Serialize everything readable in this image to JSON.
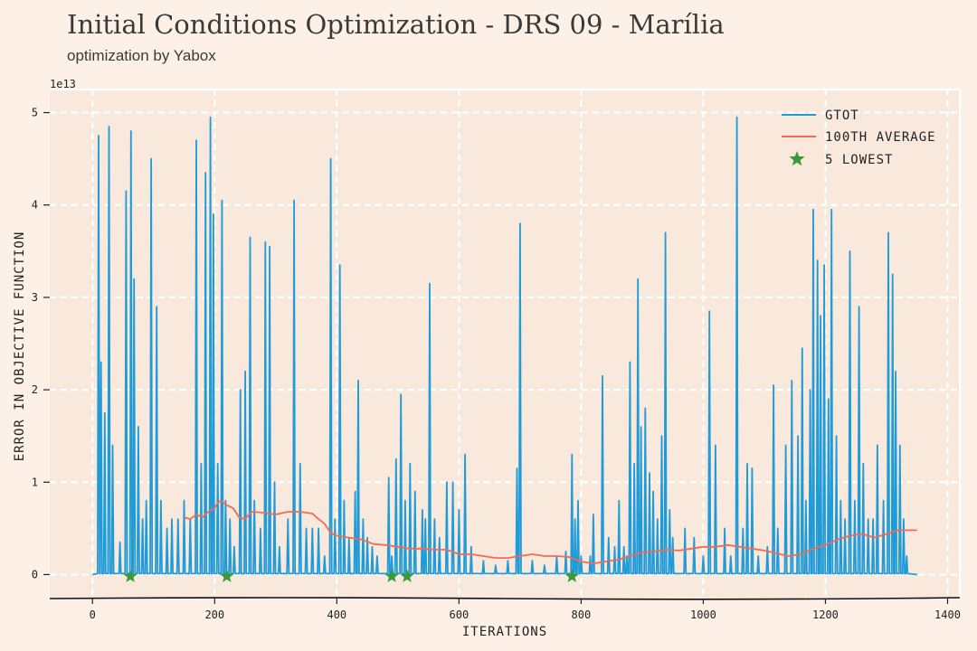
{
  "chart_data": {
    "type": "line",
    "title": "Initial Conditions Optimization - DRS 09 - Marília",
    "subtitle": "optimization by Yabox",
    "xlabel": "ITERATIONS",
    "ylabel": "ERROR IN OBJECTIVE FUNCTION",
    "y_multiplier": "1e13",
    "xlim": [
      -70,
      1420
    ],
    "ylim": [
      -0.25,
      5.25
    ],
    "x_ticks": [
      0,
      200,
      400,
      600,
      800,
      1000,
      1200,
      1400
    ],
    "y_ticks": [
      0,
      1,
      2,
      3,
      4,
      5
    ],
    "grid": true,
    "legend_position": "top-right",
    "colors": {
      "gtot": "#1f9bd8",
      "average": "#f26b54",
      "lowest": "#3a9a3a",
      "grid": "#ffffff",
      "plot_bg": "#f9e8dc"
    },
    "series": [
      {
        "name": "GTOT",
        "style": "line",
        "spikes": [
          [
            10,
            4.75
          ],
          [
            14,
            2.3
          ],
          [
            20,
            1.75
          ],
          [
            27,
            4.85
          ],
          [
            33,
            1.4
          ],
          [
            45,
            0.35
          ],
          [
            55,
            4.15
          ],
          [
            63,
            4.8
          ],
          [
            68,
            3.2
          ],
          [
            75,
            1.6
          ],
          [
            82,
            0.6
          ],
          [
            88,
            0.8
          ],
          [
            96,
            4.5
          ],
          [
            105,
            2.9
          ],
          [
            112,
            0.8
          ],
          [
            122,
            0.5
          ],
          [
            130,
            0.6
          ],
          [
            140,
            0.6
          ],
          [
            150,
            0.8
          ],
          [
            160,
            0.6
          ],
          [
            170,
            4.7
          ],
          [
            178,
            1.2
          ],
          [
            185,
            4.35
          ],
          [
            193,
            4.95
          ],
          [
            198,
            3.9
          ],
          [
            205,
            1.2
          ],
          [
            212,
            4.05
          ],
          [
            218,
            0.8
          ],
          [
            225,
            0.6
          ],
          [
            232,
            0.3
          ],
          [
            242,
            2.0
          ],
          [
            250,
            2.2
          ],
          [
            258,
            3.65
          ],
          [
            265,
            0.8
          ],
          [
            275,
            0.5
          ],
          [
            283,
            3.6
          ],
          [
            290,
            3.55
          ],
          [
            298,
            1.0
          ],
          [
            306,
            0.3
          ],
          [
            320,
            0.6
          ],
          [
            330,
            4.05
          ],
          [
            340,
            1.2
          ],
          [
            350,
            0.5
          ],
          [
            360,
            0.5
          ],
          [
            370,
            0.5
          ],
          [
            380,
            0.2
          ],
          [
            390,
            4.5
          ],
          [
            397,
            0.6
          ],
          [
            405,
            3.35
          ],
          [
            412,
            0.8
          ],
          [
            420,
            0.4
          ],
          [
            430,
            0.9
          ],
          [
            435,
            2.1
          ],
          [
            443,
            0.6
          ],
          [
            450,
            0.4
          ],
          [
            458,
            0.3
          ],
          [
            466,
            0.2
          ],
          [
            485,
            1.05
          ],
          [
            490,
            0.2
          ],
          [
            497,
            1.25
          ],
          [
            505,
            1.95
          ],
          [
            512,
            0.8
          ],
          [
            520,
            1.2
          ],
          [
            528,
            0.9
          ],
          [
            540,
            0.7
          ],
          [
            545,
            0.6
          ],
          [
            552,
            3.15
          ],
          [
            560,
            0.6
          ],
          [
            568,
            0.4
          ],
          [
            580,
            1.0
          ],
          [
            590,
            1.0
          ],
          [
            600,
            0.7
          ],
          [
            610,
            1.3
          ],
          [
            620,
            0.3
          ],
          [
            640,
            0.15
          ],
          [
            660,
            0.1
          ],
          [
            680,
            0.15
          ],
          [
            695,
            1.15
          ],
          [
            700,
            3.8
          ],
          [
            720,
            0.15
          ],
          [
            740,
            0.1
          ],
          [
            760,
            0.2
          ],
          [
            775,
            0.25
          ],
          [
            785,
            1.3
          ],
          [
            790,
            0.6
          ],
          [
            795,
            0.8
          ],
          [
            800,
            0.2
          ],
          [
            815,
            0.2
          ],
          [
            820,
            0.65
          ],
          [
            835,
            2.15
          ],
          [
            845,
            0.4
          ],
          [
            855,
            0.3
          ],
          [
            862,
            0.8
          ],
          [
            870,
            0.3
          ],
          [
            875,
            0.2
          ],
          [
            880,
            2.3
          ],
          [
            887,
            1.2
          ],
          [
            893,
            3.2
          ],
          [
            898,
            1.6
          ],
          [
            905,
            1.8
          ],
          [
            912,
            1.1
          ],
          [
            918,
            0.9
          ],
          [
            925,
            0.6
          ],
          [
            932,
            1.5
          ],
          [
            938,
            3.7
          ],
          [
            945,
            0.7
          ],
          [
            950,
            0.4
          ],
          [
            970,
            0.5
          ],
          [
            985,
            0.4
          ],
          [
            1000,
            0.2
          ],
          [
            1010,
            2.85
          ],
          [
            1020,
            1.4
          ],
          [
            1035,
            0.5
          ],
          [
            1045,
            0.2
          ],
          [
            1055,
            4.95
          ],
          [
            1065,
            0.5
          ],
          [
            1072,
            1.2
          ],
          [
            1080,
            1.15
          ],
          [
            1090,
            0.2
          ],
          [
            1105,
            0.3
          ],
          [
            1115,
            2.05
          ],
          [
            1122,
            0.5
          ],
          [
            1135,
            1.4
          ],
          [
            1145,
            2.1
          ],
          [
            1155,
            1.5
          ],
          [
            1162,
            2.45
          ],
          [
            1168,
            0.8
          ],
          [
            1175,
            2.0
          ],
          [
            1180,
            3.95
          ],
          [
            1187,
            3.4
          ],
          [
            1192,
            2.8
          ],
          [
            1198,
            3.35
          ],
          [
            1205,
            1.9
          ],
          [
            1210,
            3.95
          ],
          [
            1218,
            1.5
          ],
          [
            1225,
            0.8
          ],
          [
            1232,
            0.6
          ],
          [
            1240,
            3.5
          ],
          [
            1248,
            0.8
          ],
          [
            1255,
            2.9
          ],
          [
            1262,
            1.2
          ],
          [
            1270,
            0.6
          ],
          [
            1278,
            0.6
          ],
          [
            1285,
            1.4
          ],
          [
            1295,
            0.8
          ],
          [
            1303,
            3.7
          ],
          [
            1310,
            3.25
          ],
          [
            1315,
            2.2
          ],
          [
            1322,
            1.4
          ],
          [
            1328,
            0.6
          ],
          [
            1333,
            0.2
          ]
        ],
        "x_range": [
          0,
          1350
        ]
      },
      {
        "name": "100TH AVERAGE",
        "style": "line",
        "x": [
          150,
          160,
          170,
          180,
          190,
          200,
          205,
          210,
          220,
          230,
          240,
          250,
          260,
          280,
          300,
          320,
          340,
          360,
          370,
          380,
          390,
          400,
          420,
          440,
          460,
          480,
          500,
          520,
          540,
          560,
          580,
          600,
          620,
          640,
          660,
          680,
          700,
          720,
          740,
          760,
          780,
          800,
          820,
          840,
          860,
          880,
          900,
          920,
          940,
          960,
          980,
          1000,
          1020,
          1040,
          1060,
          1080,
          1100,
          1120,
          1140,
          1160,
          1180,
          1200,
          1220,
          1240,
          1260,
          1280,
          1300,
          1320,
          1350
        ],
        "y": [
          0.62,
          0.6,
          0.65,
          0.62,
          0.68,
          0.72,
          0.78,
          0.8,
          0.75,
          0.72,
          0.62,
          0.6,
          0.68,
          0.67,
          0.65,
          0.68,
          0.68,
          0.66,
          0.6,
          0.55,
          0.45,
          0.42,
          0.4,
          0.38,
          0.33,
          0.32,
          0.3,
          0.28,
          0.28,
          0.27,
          0.27,
          0.22,
          0.22,
          0.2,
          0.18,
          0.18,
          0.2,
          0.22,
          0.2,
          0.2,
          0.19,
          0.14,
          0.12,
          0.14,
          0.16,
          0.2,
          0.24,
          0.25,
          0.27,
          0.26,
          0.28,
          0.3,
          0.3,
          0.32,
          0.3,
          0.28,
          0.26,
          0.23,
          0.2,
          0.22,
          0.28,
          0.32,
          0.38,
          0.42,
          0.44,
          0.4,
          0.44,
          0.48,
          0.48
        ]
      },
      {
        "name": "5 LOWEST",
        "style": "star",
        "x": [
          62,
          220,
          490,
          515,
          785
        ],
        "y": [
          0.0,
          0.0,
          0.0,
          0.0,
          0.0
        ]
      }
    ]
  }
}
